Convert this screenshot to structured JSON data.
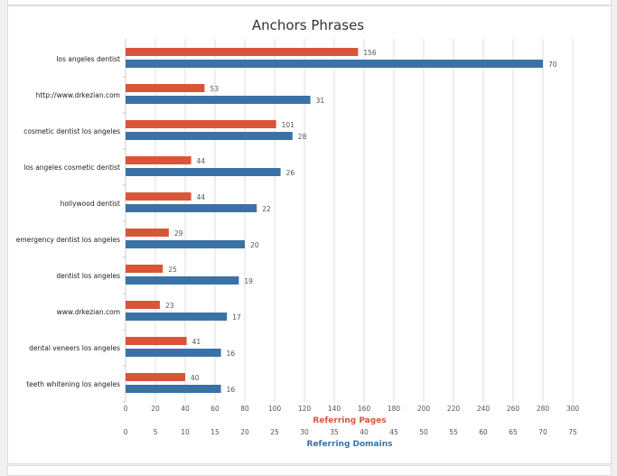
{
  "chart_data": {
    "type": "bar",
    "orientation": "horizontal",
    "title": "Anchors Phrases",
    "categories": [
      "los angeles dentist",
      "http://www.drkezian.com",
      "cosmetic dentist los angeles",
      "los angeles cosmetic dentist",
      "hollywood dentist",
      "emergency dentist los angeles",
      "dentist los angeles",
      "www.drkezian.com",
      "dental veneers los angeles",
      "teeth whitening los angeles"
    ],
    "series": [
      {
        "name": "Referring Pages",
        "color": "#d9553a",
        "axis": "primary",
        "values": [
          156,
          53,
          101,
          44,
          44,
          29,
          25,
          23,
          41,
          40
        ]
      },
      {
        "name": "Referring Domains",
        "color": "#3a72a8",
        "axis": "secondary",
        "values": [
          70,
          31,
          28,
          26,
          22,
          20,
          19,
          17,
          16,
          16
        ]
      }
    ],
    "axes": [
      {
        "label": "Referring Pages",
        "range": [
          0,
          300
        ],
        "ticks": [
          0,
          20,
          40,
          60,
          80,
          100,
          120,
          140,
          160,
          180,
          200,
          220,
          240,
          260,
          280,
          300
        ],
        "color": "#d9553a"
      },
      {
        "label": "Referring Domains",
        "range": [
          0,
          75
        ],
        "ticks": [
          0,
          5,
          10,
          15,
          20,
          25,
          30,
          35,
          40,
          45,
          50,
          55,
          60,
          65,
          70,
          75
        ],
        "color": "#3a72a8"
      }
    ],
    "grid": true,
    "data_labels": true
  }
}
